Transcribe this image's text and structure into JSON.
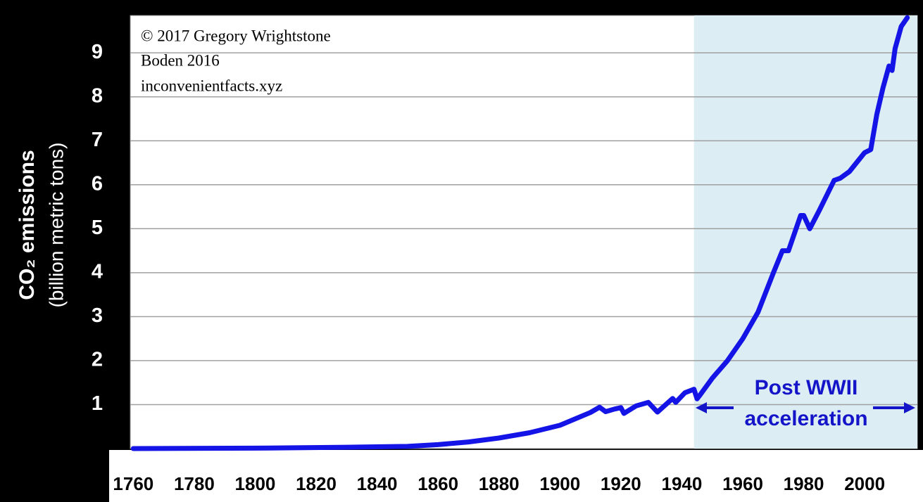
{
  "chart_data": {
    "type": "line",
    "y_axis_title": "CO₂ emissions",
    "y_axis_subtitle": "(billion metric tons)",
    "credits": [
      "© 2017 Gregory Wrightstone",
      "Boden 2016",
      "inconvenientfacts.xyz"
    ],
    "annotation": [
      "Post WWII",
      "acceleration"
    ],
    "shaded_from": 1944,
    "color": "#1414e6",
    "x": [
      1760,
      1800,
      1830,
      1850,
      1860,
      1870,
      1880,
      1890,
      1900,
      1910,
      1913,
      1915,
      1918,
      1920,
      1921,
      1925,
      1929,
      1932,
      1937,
      1938,
      1941,
      1944,
      1945,
      1946,
      1950,
      1955,
      1960,
      1965,
      1970,
      1973,
      1975,
      1979,
      1980,
      1982,
      1985,
      1990,
      1992,
      1995,
      2000,
      2002,
      2004,
      2006,
      2008,
      2009,
      2010,
      2012,
      2014
    ],
    "values": [
      0,
      0.01,
      0.03,
      0.05,
      0.09,
      0.15,
      0.24,
      0.36,
      0.53,
      0.82,
      0.94,
      0.84,
      0.9,
      0.93,
      0.8,
      0.97,
      1.05,
      0.83,
      1.14,
      1.05,
      1.27,
      1.35,
      1.13,
      1.22,
      1.6,
      2.0,
      2.5,
      3.1,
      3.99,
      4.5,
      4.5,
      5.3,
      5.3,
      5.0,
      5.4,
      6.1,
      6.15,
      6.3,
      6.73,
      6.8,
      7.6,
      8.2,
      8.7,
      8.6,
      9.1,
      9.6,
      9.8
    ],
    "xlim": [
      1759,
      2017.3
    ],
    "xticks": [
      1760,
      1780,
      1800,
      1820,
      1840,
      1860,
      1880,
      1900,
      1920,
      1940,
      1960,
      1980,
      2000
    ],
    "ylim": [
      0,
      9.85
    ],
    "yticks": [
      1,
      2,
      3,
      4,
      5,
      6,
      7,
      8,
      9
    ],
    "grid": true
  }
}
